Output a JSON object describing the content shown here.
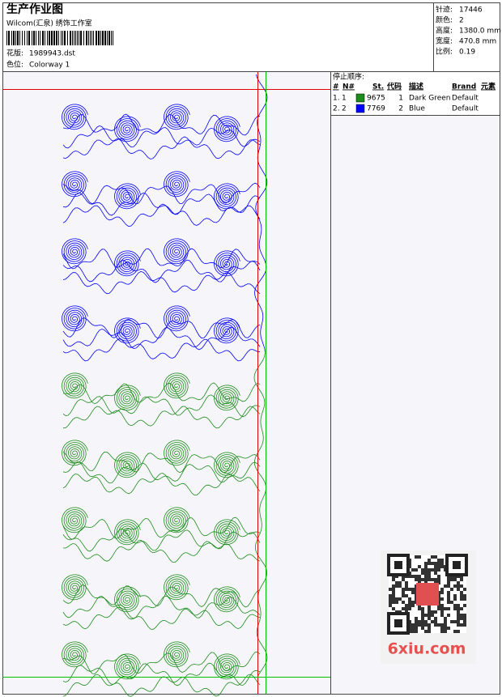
{
  "header": {
    "title": "生产作业图",
    "studio": "Wilcom(汇泉) 绣饰工作室",
    "design_label": "花版:",
    "design": "1989943.dst",
    "colorway_label": "色位:",
    "colorway": "Colorway 1"
  },
  "info": [
    {
      "label": "针迹:",
      "value": "17446"
    },
    {
      "label": "颜色:",
      "value": "2"
    },
    {
      "label": "高度:",
      "value": "1380.0 mm"
    },
    {
      "label": "宽度:",
      "value": "470.8 mm"
    },
    {
      "label": "比例:",
      "value": "0.19"
    }
  ],
  "threads": {
    "title": "停止顺序:",
    "columns": [
      "#",
      "N#",
      "St.",
      "代码",
      "描述",
      "Brand",
      "元素"
    ],
    "rows": [
      {
        "index": "1.",
        "stop": "1",
        "color": "#1c8c1c",
        "stitches": "9675",
        "code": "1",
        "description": "Dark Green",
        "brand": "Default"
      },
      {
        "index": "2.",
        "stop": "2",
        "color": "#0000ff",
        "stitches": "7769",
        "code": "2",
        "description": "Blue",
        "brand": "Default"
      }
    ]
  },
  "watermark": "6xiu.com"
}
